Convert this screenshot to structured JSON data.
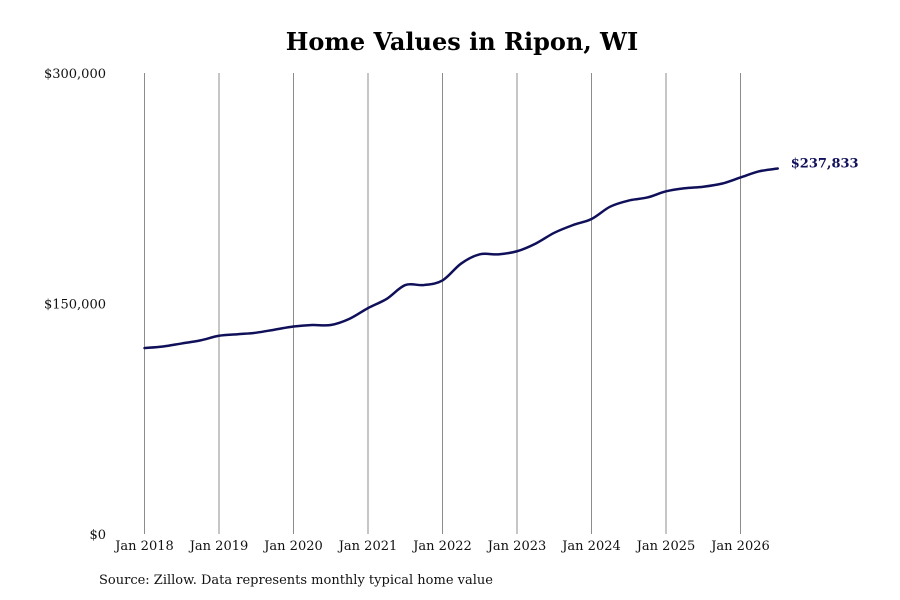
{
  "colors": {
    "line": "#10105a",
    "gridline": "#8c8c8c",
    "end_label": "#10105a"
  },
  "chart_data": {
    "type": "line",
    "title": "Home Values in Ripon, WI",
    "xlabel": "",
    "ylabel": "",
    "ylim": [
      0,
      300000
    ],
    "y_ticks": [
      0,
      150000,
      300000
    ],
    "y_tick_labels": [
      "$0",
      "$150,000",
      "$300,000"
    ],
    "x_ticks": [
      "2018-01",
      "2019-01",
      "2020-01",
      "2021-01",
      "2022-01",
      "2023-01",
      "2024-01",
      "2025-01",
      "2026-01"
    ],
    "x_tick_labels": [
      "Jan 2018",
      "Jan 2019",
      "Jan 2020",
      "Jan 2021",
      "Jan 2022",
      "Jan 2023",
      "Jan 2024",
      "Jan 2025",
      "Jan 2026"
    ],
    "grid": "vertical",
    "end_label": "$237,833",
    "series": [
      {
        "x": [
          "2018-01",
          "2018-04",
          "2018-07",
          "2018-10",
          "2019-01",
          "2019-04",
          "2019-07",
          "2019-10",
          "2020-01",
          "2020-04",
          "2020-07",
          "2020-10",
          "2021-01",
          "2021-04",
          "2021-07",
          "2021-10",
          "2022-01",
          "2022-04",
          "2022-07",
          "2022-10",
          "2023-01",
          "2023-04",
          "2023-07",
          "2023-10",
          "2024-01",
          "2024-04",
          "2024-07",
          "2024-10",
          "2025-01",
          "2025-04",
          "2025-07",
          "2025-10",
          "2026-01",
          "2026-04",
          "2026-07"
        ],
        "values": [
          121000,
          122000,
          124000,
          126000,
          129000,
          130000,
          131000,
          133000,
          135000,
          136000,
          136000,
          140000,
          147000,
          153000,
          162000,
          162000,
          165000,
          176000,
          182000,
          182000,
          184000,
          189000,
          196000,
          201000,
          205000,
          213000,
          217000,
          219000,
          223000,
          225000,
          226000,
          228000,
          232000,
          236000,
          237833
        ]
      }
    ]
  },
  "source_note": "Source: Zillow. Data represents monthly typical home value"
}
